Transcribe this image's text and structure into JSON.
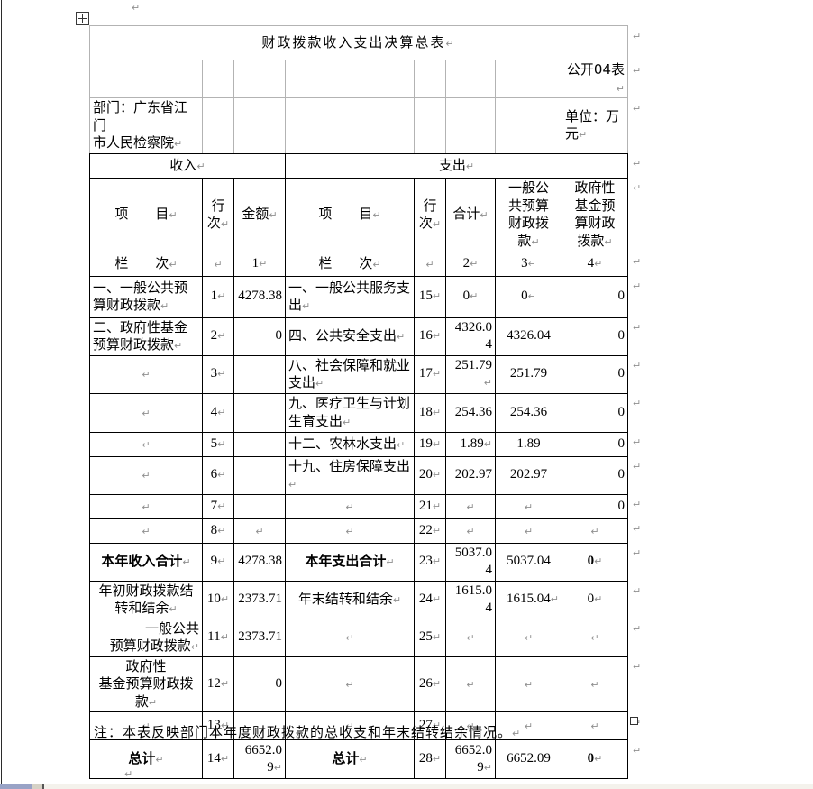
{
  "doc": {
    "title": "财政拨款收入支出决算总表",
    "form_no": "公开04表",
    "department": "部门：广东省江门\n市人民检察院",
    "unit": "单位：万元",
    "income_header": "收入",
    "expense_header": "支出",
    "headers": [
      "项　　目",
      "行\n次",
      "金额",
      "项　　目",
      "行\n次",
      "合计",
      "一般公\n共预算\n财政拨\n款",
      "政府性\n基金预\n算财政\n拨款"
    ],
    "lanci": [
      "栏　　次",
      "",
      "1",
      "栏　　次",
      "",
      "2",
      "3",
      "4"
    ],
    "rows": [
      [
        [
          "一、一般公共预\n算财政拨款",
          "l"
        ],
        [
          "1",
          ""
        ],
        [
          "4278.38",
          "n"
        ],
        [
          "一、一般公共服务支\n出",
          "l"
        ],
        [
          "15",
          ""
        ],
        [
          "0",
          "c"
        ],
        [
          "0",
          "c"
        ],
        [
          "0",
          "n"
        ]
      ],
      [
        [
          "二、政府性基金\n预算财政拨款",
          "l"
        ],
        [
          "2",
          ""
        ],
        [
          "0",
          "n"
        ],
        [
          "四、公共安全支出",
          "l"
        ],
        [
          "16",
          ""
        ],
        [
          "4326.04",
          "n"
        ],
        [
          "4326.04",
          "cn"
        ],
        [
          "0",
          "n"
        ]
      ],
      [
        [
          "",
          ""
        ],
        [
          "3",
          ""
        ],
        [
          "",
          "n"
        ],
        [
          "八、社会保障和就业\n支出",
          "l"
        ],
        [
          "17",
          ""
        ],
        [
          "251.79",
          "B"
        ],
        [
          "251.79",
          "cn"
        ],
        [
          "0",
          "n"
        ]
      ],
      [
        [
          "",
          ""
        ],
        [
          "4",
          ""
        ],
        [
          "",
          "n"
        ],
        [
          "九、医疗卫生与计划\n生育支出",
          "l"
        ],
        [
          "18",
          ""
        ],
        [
          "254.36",
          "n"
        ],
        [
          "254.36",
          "cn"
        ],
        [
          "0",
          "n"
        ]
      ],
      [
        [
          "",
          ""
        ],
        [
          "5",
          ""
        ],
        [
          "",
          "n"
        ],
        [
          "十二、农林水支出",
          "l"
        ],
        [
          "19",
          ""
        ],
        [
          "1.89",
          ""
        ],
        [
          "1.89",
          "cn"
        ],
        [
          "0",
          "n"
        ]
      ],
      [
        [
          "",
          ""
        ],
        [
          "6",
          ""
        ],
        [
          "",
          "n"
        ],
        [
          "十九、住房保障支出",
          "l"
        ],
        [
          "20",
          ""
        ],
        [
          "202.97",
          "n"
        ],
        [
          "202.97",
          "cn"
        ],
        [
          "0",
          "n"
        ]
      ],
      [
        [
          "",
          ""
        ],
        [
          "7",
          ""
        ],
        [
          "",
          "n"
        ],
        [
          "",
          ""
        ],
        [
          "21",
          ""
        ],
        [
          "",
          ""
        ],
        [
          "",
          ""
        ],
        [
          "0",
          "n"
        ]
      ],
      [
        [
          "",
          ""
        ],
        [
          "8",
          ""
        ],
        [
          "",
          ""
        ],
        [
          "",
          ""
        ],
        [
          "22",
          ""
        ],
        [
          "",
          ""
        ],
        [
          "",
          ""
        ],
        [
          "",
          ""
        ]
      ],
      [
        [
          "本年收入合计",
          "cb"
        ],
        [
          "9",
          ""
        ],
        [
          "4278.38",
          "n"
        ],
        [
          "本年支出合计",
          "cb"
        ],
        [
          "23",
          ""
        ],
        [
          "5037.04",
          "n"
        ],
        [
          "5037.04",
          "cn"
        ],
        [
          "0",
          "cb"
        ]
      ],
      [
        [
          "年初财政拨款结\n转和结余",
          "c"
        ],
        [
          "10",
          ""
        ],
        [
          "2373.71",
          "n"
        ],
        [
          "年末结转和结余",
          "c"
        ],
        [
          "24",
          ""
        ],
        [
          "1615.04",
          "n"
        ],
        [
          "1615.04",
          "B"
        ],
        [
          "0",
          "c"
        ]
      ],
      [
        [
          "一般公共\n预算财政拨款",
          "r"
        ],
        [
          "11",
          ""
        ],
        [
          "2373.71",
          "n"
        ],
        [
          "",
          ""
        ],
        [
          "25",
          ""
        ],
        [
          "",
          ""
        ],
        [
          "",
          ""
        ],
        [
          "",
          ""
        ]
      ],
      [
        [
          "政府性\n基金预算财政拨\n款",
          "c"
        ],
        [
          "12",
          ""
        ],
        [
          "0",
          "n"
        ],
        [
          "",
          ""
        ],
        [
          "26",
          ""
        ],
        [
          "",
          ""
        ],
        [
          "",
          ""
        ],
        [
          "",
          ""
        ]
      ],
      [
        [
          "",
          ""
        ],
        [
          "13",
          ""
        ],
        [
          "",
          "n"
        ],
        [
          "",
          ""
        ],
        [
          "27",
          ""
        ],
        [
          "",
          ""
        ],
        [
          "",
          ""
        ],
        [
          "",
          ""
        ]
      ],
      [
        [
          "总计",
          "cb"
        ],
        [
          "14",
          ""
        ],
        [
          "6652.0\n9",
          ""
        ],
        [
          "总计",
          "cb"
        ],
        [
          "28",
          ""
        ],
        [
          "6652.0\n9",
          ""
        ],
        [
          "6652.09",
          "cn"
        ],
        [
          "0",
          "cb"
        ]
      ]
    ],
    "note": "注：本表反映部门本年度财政拨款的总收支和年末结转结余情况。",
    "marks": {
      "pilcrow": "↵"
    },
    "colors": {
      "grid_light": "#b3b3b3",
      "grid_dark": "#000000",
      "mark": "#8f8f8f"
    }
  }
}
